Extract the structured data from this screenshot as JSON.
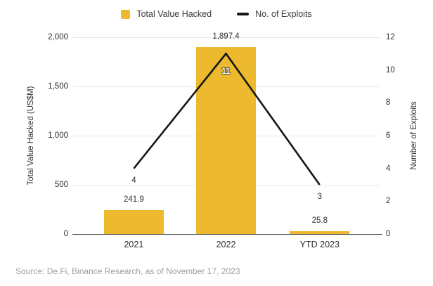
{
  "chart_data": {
    "type": "bar+line combo",
    "categories": [
      "2021",
      "2022",
      "YTD 2023"
    ],
    "series": [
      {
        "name": "Total Value Hacked",
        "type": "bar",
        "axis": "left",
        "values": [
          241.9,
          1897.4,
          25.8
        ],
        "labels": [
          "241.9",
          "1,897.4",
          "25.8"
        ],
        "color": "#ECB92F"
      },
      {
        "name": "No. of Exploits",
        "type": "line",
        "axis": "right",
        "values": [
          4,
          11,
          3
        ],
        "labels": [
          "4",
          "11",
          "3"
        ],
        "color": "#161616"
      }
    ],
    "left_axis": {
      "title": "Total Value Hacked (US$M)",
      "min": 0,
      "max": 2000,
      "ticks": [
        "0",
        "500",
        "1,000",
        "1,500",
        "2,000"
      ]
    },
    "right_axis": {
      "title": "Number of Exploits",
      "min": 0,
      "max": 12,
      "ticks": [
        "0",
        "2",
        "4",
        "6",
        "8",
        "10",
        "12"
      ]
    },
    "grid": "horizontal",
    "legend_position": "top"
  },
  "source": "Source: De.Fi, Binance Research, as of November 17, 2023",
  "colors": {
    "bar": "#ECB92F",
    "line": "#161616",
    "grid": "#E7E7E7",
    "axis": "#4A4A4A",
    "text": "#2E2E2E",
    "muted": "#9E9E9E"
  }
}
